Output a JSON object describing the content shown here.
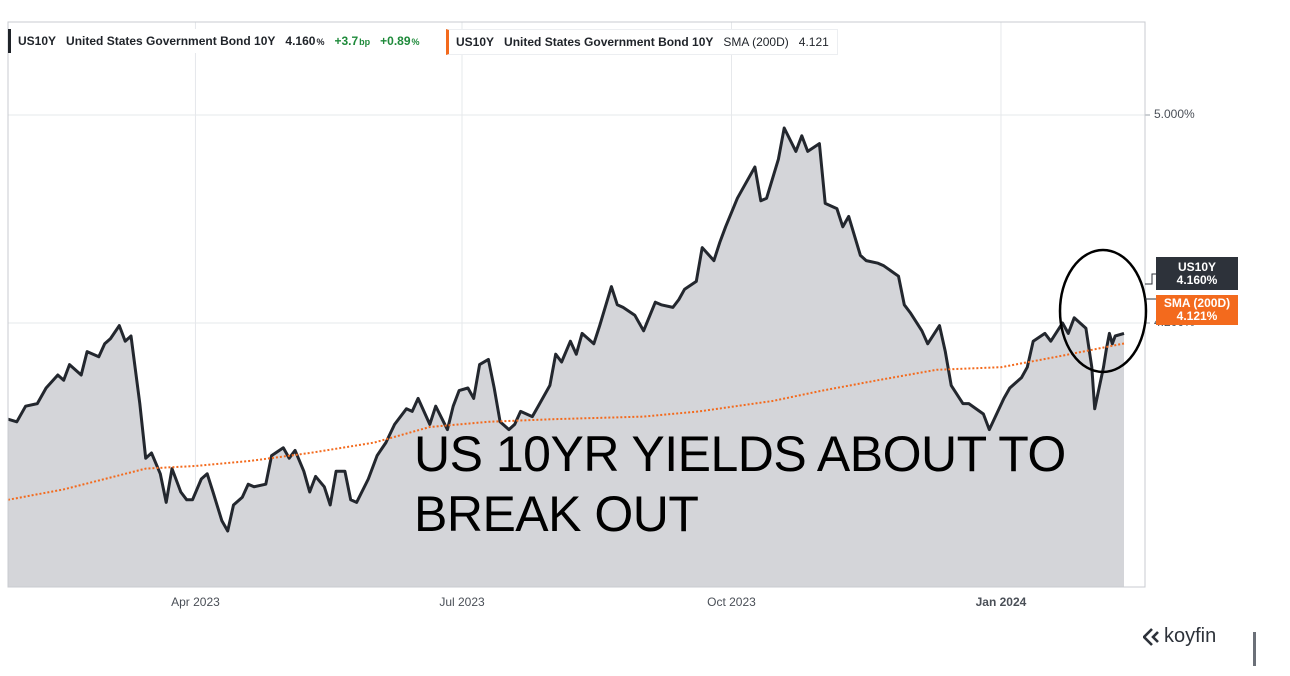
{
  "legend": {
    "primary": {
      "ticker": "US10Y",
      "name": "United States Government Bond 10Y",
      "value": "4.160",
      "value_unit": "%",
      "change_bp": "+3.7",
      "change_bp_unit": "bp",
      "change_pct": "+0.89",
      "change_pct_unit": "%"
    },
    "sma": {
      "ticker": "US10Y",
      "name": "United States Government Bond 10Y",
      "indicator": "SMA (200D)",
      "value": "4.121"
    }
  },
  "tags": {
    "primary": {
      "ticker": "US10Y",
      "value": "4.160%"
    },
    "sma": {
      "label": "SMA (200D)",
      "value": "4.121%"
    }
  },
  "annotation": {
    "line1": "US 10YR YIELDS ABOUT TO",
    "line2": "BREAK OUT"
  },
  "brand": {
    "name": "koyfin"
  },
  "colors": {
    "price_line": "#23272e",
    "area_fill": "#d4d5d9",
    "sma_line": "#f36a1d",
    "tag_dark": "#2d323a",
    "positive": "#1e8a3a"
  },
  "chart_data": {
    "type": "area",
    "y_axis_side": "right",
    "ylim": [
      3.36,
      5.42
    ],
    "y_ticks": [
      {
        "value": 5.0,
        "label": "5.000%"
      },
      {
        "value": 4.2,
        "label": "4.200%"
      }
    ],
    "x_ticks": [
      {
        "date": "2023-04-01",
        "label": "Apr 2023"
      },
      {
        "date": "2023-07-01",
        "label": "Jul 2023"
      },
      {
        "date": "2023-10-01",
        "label": "Oct 2023"
      },
      {
        "date": "2024-01-01",
        "label": "Jan 2024"
      }
    ],
    "xlim": [
      "2023-01-27",
      "2024-02-15"
    ],
    "series": [
      {
        "name": "US10Y",
        "points": [
          [
            "2023-01-27",
            3.83
          ],
          [
            "2023-01-30",
            3.82
          ],
          [
            "2023-02-02",
            3.88
          ],
          [
            "2023-02-06",
            3.89
          ],
          [
            "2023-02-09",
            3.95
          ],
          [
            "2023-02-13",
            4.0
          ],
          [
            "2023-02-15",
            3.98
          ],
          [
            "2023-02-17",
            4.04
          ],
          [
            "2023-02-21",
            4.0
          ],
          [
            "2023-02-23",
            4.09
          ],
          [
            "2023-02-27",
            4.07
          ],
          [
            "2023-03-01",
            4.12
          ],
          [
            "2023-03-03",
            4.14
          ],
          [
            "2023-03-06",
            4.19
          ],
          [
            "2023-03-08",
            4.13
          ],
          [
            "2023-03-10",
            4.15
          ],
          [
            "2023-03-13",
            3.89
          ],
          [
            "2023-03-15",
            3.68
          ],
          [
            "2023-03-17",
            3.7
          ],
          [
            "2023-03-20",
            3.62
          ],
          [
            "2023-03-22",
            3.51
          ],
          [
            "2023-03-24",
            3.64
          ],
          [
            "2023-03-27",
            3.55
          ],
          [
            "2023-03-29",
            3.52
          ],
          [
            "2023-03-31",
            3.52
          ],
          [
            "2023-04-03",
            3.6
          ],
          [
            "2023-04-05",
            3.62
          ],
          [
            "2023-04-07",
            3.55
          ],
          [
            "2023-04-10",
            3.44
          ],
          [
            "2023-04-12",
            3.4
          ],
          [
            "2023-04-14",
            3.5
          ],
          [
            "2023-04-17",
            3.53
          ],
          [
            "2023-04-19",
            3.58
          ],
          [
            "2023-04-21",
            3.57
          ],
          [
            "2023-04-25",
            3.58
          ],
          [
            "2023-04-27",
            3.69
          ],
          [
            "2023-05-01",
            3.72
          ],
          [
            "2023-05-03",
            3.68
          ],
          [
            "2023-05-05",
            3.71
          ],
          [
            "2023-05-08",
            3.63
          ],
          [
            "2023-05-10",
            3.55
          ],
          [
            "2023-05-12",
            3.61
          ],
          [
            "2023-05-15",
            3.57
          ],
          [
            "2023-05-17",
            3.5
          ],
          [
            "2023-05-19",
            3.63
          ],
          [
            "2023-05-22",
            3.63
          ],
          [
            "2023-05-24",
            3.52
          ],
          [
            "2023-05-26",
            3.51
          ],
          [
            "2023-05-30",
            3.6
          ],
          [
            "2023-06-02",
            3.69
          ],
          [
            "2023-06-05",
            3.74
          ],
          [
            "2023-06-08",
            3.81
          ],
          [
            "2023-06-12",
            3.87
          ],
          [
            "2023-06-14",
            3.86
          ],
          [
            "2023-06-16",
            3.91
          ],
          [
            "2023-06-20",
            3.81
          ],
          [
            "2023-06-22",
            3.88
          ],
          [
            "2023-06-26",
            3.79
          ],
          [
            "2023-06-28",
            3.88
          ],
          [
            "2023-06-30",
            3.94
          ],
          [
            "2023-07-03",
            3.95
          ],
          [
            "2023-07-05",
            3.91
          ],
          [
            "2023-07-07",
            4.04
          ],
          [
            "2023-07-10",
            4.06
          ],
          [
            "2023-07-12",
            3.95
          ],
          [
            "2023-07-14",
            3.82
          ],
          [
            "2023-07-17",
            3.79
          ],
          [
            "2023-07-19",
            3.81
          ],
          [
            "2023-07-21",
            3.86
          ],
          [
            "2023-07-25",
            3.84
          ],
          [
            "2023-07-27",
            3.88
          ],
          [
            "2023-07-31",
            3.96
          ],
          [
            "2023-08-02",
            4.08
          ],
          [
            "2023-08-04",
            4.05
          ],
          [
            "2023-08-07",
            4.13
          ],
          [
            "2023-08-09",
            4.08
          ],
          [
            "2023-08-11",
            4.16
          ],
          [
            "2023-08-15",
            4.12
          ],
          [
            "2023-08-17",
            4.19
          ],
          [
            "2023-08-21",
            4.34
          ],
          [
            "2023-08-23",
            4.27
          ],
          [
            "2023-08-25",
            4.26
          ],
          [
            "2023-08-29",
            4.23
          ],
          [
            "2023-09-01",
            4.17
          ],
          [
            "2023-09-05",
            4.28
          ],
          [
            "2023-09-07",
            4.27
          ],
          [
            "2023-09-11",
            4.26
          ],
          [
            "2023-09-13",
            4.29
          ],
          [
            "2023-09-15",
            4.33
          ],
          [
            "2023-09-19",
            4.36
          ],
          [
            "2023-09-21",
            4.49
          ],
          [
            "2023-09-25",
            4.44
          ],
          [
            "2023-09-27",
            4.51
          ],
          [
            "2023-09-29",
            4.57
          ],
          [
            "2023-10-03",
            4.68
          ],
          [
            "2023-10-05",
            4.72
          ],
          [
            "2023-10-09",
            4.8
          ],
          [
            "2023-10-11",
            4.67
          ],
          [
            "2023-10-13",
            4.68
          ],
          [
            "2023-10-17",
            4.83
          ],
          [
            "2023-10-19",
            4.95
          ],
          [
            "2023-10-23",
            4.86
          ],
          [
            "2023-10-25",
            4.92
          ],
          [
            "2023-10-27",
            4.86
          ],
          [
            "2023-10-31",
            4.89
          ],
          [
            "2023-11-02",
            4.66
          ],
          [
            "2023-11-06",
            4.64
          ],
          [
            "2023-11-08",
            4.57
          ],
          [
            "2023-11-10",
            4.61
          ],
          [
            "2023-11-14",
            4.46
          ],
          [
            "2023-11-16",
            4.44
          ],
          [
            "2023-11-20",
            4.43
          ],
          [
            "2023-11-22",
            4.42
          ],
          [
            "2023-11-27",
            4.38
          ],
          [
            "2023-11-29",
            4.27
          ],
          [
            "2023-12-01",
            4.24
          ],
          [
            "2023-12-05",
            4.17
          ],
          [
            "2023-12-07",
            4.12
          ],
          [
            "2023-12-11",
            4.19
          ],
          [
            "2023-12-13",
            4.09
          ],
          [
            "2023-12-15",
            3.96
          ],
          [
            "2023-12-19",
            3.89
          ],
          [
            "2023-12-21",
            3.89
          ],
          [
            "2023-12-26",
            3.85
          ],
          [
            "2023-12-28",
            3.79
          ],
          [
            "2024-01-02",
            3.91
          ],
          [
            "2024-01-04",
            3.95
          ],
          [
            "2024-01-08",
            3.99
          ],
          [
            "2024-01-10",
            4.03
          ],
          [
            "2024-01-12",
            4.13
          ],
          [
            "2024-01-16",
            4.16
          ],
          [
            "2024-01-18",
            4.13
          ],
          [
            "2024-01-22",
            4.2
          ],
          [
            "2024-01-24",
            4.16
          ],
          [
            "2024-01-26",
            4.22
          ],
          [
            "2024-01-30",
            4.18
          ],
          [
            "2024-02-01",
            4.03
          ],
          [
            "2024-02-02",
            3.87
          ],
          [
            "2024-02-05",
            4.03
          ],
          [
            "2024-02-06",
            4.1
          ],
          [
            "2024-02-07",
            4.16
          ],
          [
            "2024-02-08",
            4.12
          ],
          [
            "2024-02-09",
            4.15
          ],
          [
            "2024-02-12",
            4.16
          ]
        ]
      },
      {
        "name": "SMA (200D)",
        "points": [
          [
            "2023-01-27",
            3.52
          ],
          [
            "2023-02-15",
            3.56
          ],
          [
            "2023-03-01",
            3.6
          ],
          [
            "2023-03-15",
            3.64
          ],
          [
            "2023-04-01",
            3.65
          ],
          [
            "2023-04-20",
            3.67
          ],
          [
            "2023-05-10",
            3.7
          ],
          [
            "2023-06-01",
            3.74
          ],
          [
            "2023-06-20",
            3.8
          ],
          [
            "2023-07-10",
            3.82
          ],
          [
            "2023-08-01",
            3.83
          ],
          [
            "2023-09-01",
            3.84
          ],
          [
            "2023-09-20",
            3.86
          ],
          [
            "2023-10-15",
            3.9
          ],
          [
            "2023-11-01",
            3.94
          ],
          [
            "2023-11-20",
            3.98
          ],
          [
            "2023-12-10",
            4.02
          ],
          [
            "2024-01-01",
            4.03
          ],
          [
            "2024-01-20",
            4.07
          ],
          [
            "2024-02-12",
            4.121
          ]
        ]
      }
    ]
  }
}
